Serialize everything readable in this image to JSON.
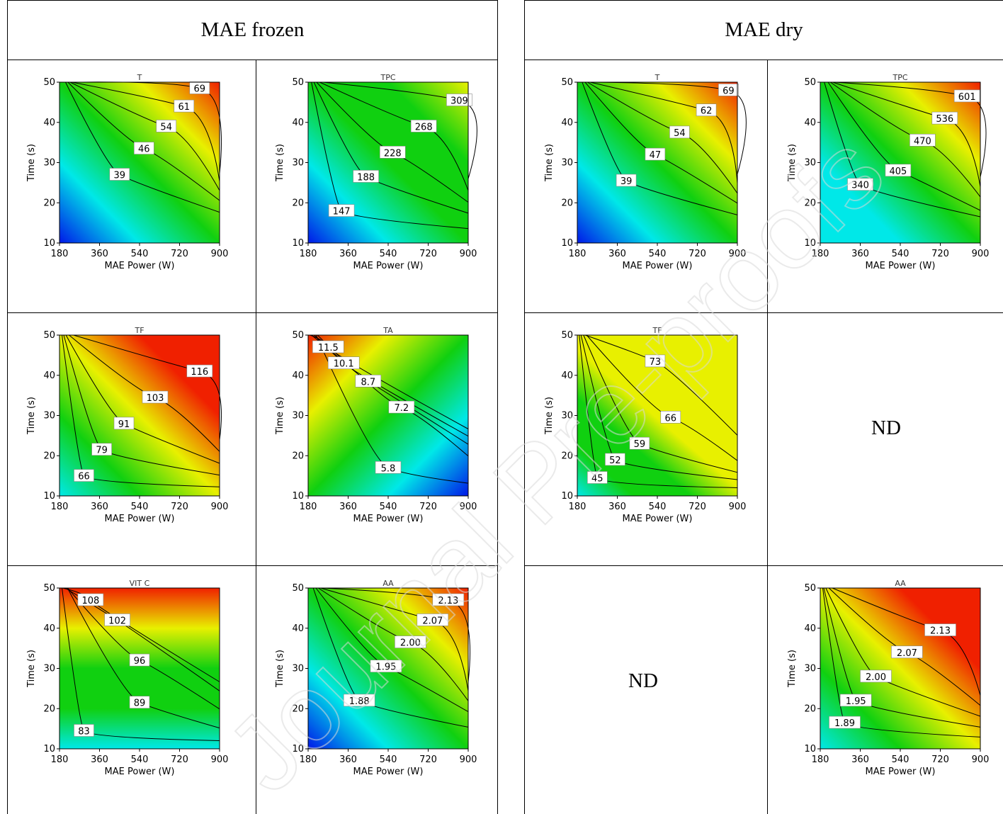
{
  "headers": {
    "left": "MAE frozen",
    "right": "MAE dry"
  },
  "not_determined": [
    "ND",
    "ND"
  ],
  "watermark": "Journal Pre-proofs",
  "colors": {
    "low": "#0018e8",
    "mid_low": "#00e8e8",
    "mid": "#10d010",
    "mid_high": "#e8f000",
    "high": "#f02000"
  },
  "chart_data": [
    {
      "type": "heatmap",
      "group": "MAE frozen",
      "title": "T",
      "xlabel": "MAE Power (W)",
      "ylabel": "Time (s)",
      "x_ticks": [
        "180",
        "360",
        "540",
        "720",
        "900"
      ],
      "y_ticks": [
        "10",
        "20",
        "30",
        "40",
        "50"
      ],
      "xlim": [
        180,
        900
      ],
      "ylim": [
        10,
        50
      ],
      "contours": [
        {
          "label": "39",
          "x": 450,
          "y": 27
        },
        {
          "label": "46",
          "x": 560,
          "y": 33.5
        },
        {
          "label": "54",
          "x": 660,
          "y": 39
        },
        {
          "label": "61",
          "x": 740,
          "y": 44
        },
        {
          "label": "69",
          "x": 810,
          "y": 48.5
        }
      ]
    },
    {
      "type": "heatmap",
      "group": "MAE frozen",
      "title": "TPC",
      "xlabel": "MAE Power (W)",
      "ylabel": "Time (s)",
      "x_ticks": [
        "180",
        "360",
        "540",
        "720",
        "900"
      ],
      "y_ticks": [
        "10",
        "20",
        "30",
        "40",
        "50"
      ],
      "xlim": [
        180,
        900
      ],
      "ylim": [
        10,
        50
      ],
      "contours": [
        {
          "label": "147",
          "x": 330,
          "y": 18
        },
        {
          "label": "188",
          "x": 440,
          "y": 26.5
        },
        {
          "label": "228",
          "x": 560,
          "y": 32.5
        },
        {
          "label": "268",
          "x": 700,
          "y": 39
        },
        {
          "label": "309",
          "x": 860,
          "y": 45.5
        }
      ]
    },
    {
      "type": "heatmap",
      "group": "MAE dry",
      "title": "T",
      "xlabel": "MAE Power (W)",
      "ylabel": "Time (s)",
      "x_ticks": [
        "180",
        "360",
        "540",
        "720",
        "900"
      ],
      "y_ticks": [
        "10",
        "20",
        "30",
        "40",
        "50"
      ],
      "xlim": [
        180,
        900
      ],
      "ylim": [
        10,
        50
      ],
      "contours": [
        {
          "label": "39",
          "x": 400,
          "y": 25.5
        },
        {
          "label": "47",
          "x": 530,
          "y": 32
        },
        {
          "label": "54",
          "x": 640,
          "y": 37.5
        },
        {
          "label": "62",
          "x": 760,
          "y": 43
        },
        {
          "label": "69",
          "x": 860,
          "y": 48
        }
      ]
    },
    {
      "type": "heatmap",
      "group": "MAE dry",
      "title": "TPC",
      "xlabel": "MAE Power (W)",
      "ylabel": "Time (s)",
      "x_ticks": [
        "180",
        "360",
        "540",
        "720",
        "900"
      ],
      "y_ticks": [
        "10",
        "20",
        "30",
        "40",
        "50"
      ],
      "xlim": [
        180,
        900
      ],
      "ylim": [
        10,
        50
      ],
      "contours": [
        {
          "label": "340",
          "x": 360,
          "y": 24.5
        },
        {
          "label": "405",
          "x": 530,
          "y": 28
        },
        {
          "label": "470",
          "x": 640,
          "y": 35.5
        },
        {
          "label": "536",
          "x": 740,
          "y": 41
        },
        {
          "label": "601",
          "x": 840,
          "y": 46.5
        }
      ]
    },
    {
      "type": "heatmap",
      "group": "MAE frozen",
      "title": "TF",
      "xlabel": "MAE Power (W)",
      "ylabel": "Time (s)",
      "x_ticks": [
        "180",
        "360",
        "540",
        "720",
        "900"
      ],
      "y_ticks": [
        "10",
        "20",
        "30",
        "40",
        "50"
      ],
      "xlim": [
        180,
        900
      ],
      "ylim": [
        10,
        50
      ],
      "contours": [
        {
          "label": "66",
          "x": 290,
          "y": 15
        },
        {
          "label": "79",
          "x": 370,
          "y": 21.5
        },
        {
          "label": "91",
          "x": 470,
          "y": 28
        },
        {
          "label": "103",
          "x": 610,
          "y": 34.5
        },
        {
          "label": "116",
          "x": 810,
          "y": 41
        }
      ]
    },
    {
      "type": "heatmap",
      "group": "MAE frozen",
      "title": "TA",
      "xlabel": "MAE Power (W)",
      "ylabel": "Time (s)",
      "x_ticks": [
        "180",
        "360",
        "540",
        "720",
        "900"
      ],
      "y_ticks": [
        "10",
        "20",
        "30",
        "40",
        "50"
      ],
      "xlim": [
        180,
        900
      ],
      "ylim": [
        10,
        50
      ],
      "contours": [
        {
          "label": "5.8",
          "x": 540,
          "y": 17
        },
        {
          "label": "7.2",
          "x": 600,
          "y": 32
        },
        {
          "label": "8.7",
          "x": 450,
          "y": 38.5
        },
        {
          "label": "10.1",
          "x": 340,
          "y": 43
        },
        {
          "label": "11.5",
          "x": 270,
          "y": 47
        }
      ]
    },
    {
      "type": "heatmap",
      "group": "MAE dry",
      "title": "TF",
      "xlabel": "MAE Power (W)",
      "ylabel": "Time (s)",
      "x_ticks": [
        "180",
        "360",
        "540",
        "720",
        "900"
      ],
      "y_ticks": [
        "10",
        "20",
        "30",
        "40",
        "50"
      ],
      "xlim": [
        180,
        900
      ],
      "ylim": [
        10,
        50
      ],
      "contours": [
        {
          "label": "45",
          "x": 270,
          "y": 14.5
        },
        {
          "label": "52",
          "x": 350,
          "y": 19
        },
        {
          "label": "59",
          "x": 460,
          "y": 23
        },
        {
          "label": "66",
          "x": 600,
          "y": 29.5
        },
        {
          "label": "73",
          "x": 530,
          "y": 43.5
        }
      ]
    },
    {
      "type": "heatmap",
      "group": "MAE frozen",
      "title": "VIT C",
      "xlabel": "MAE Power (W)",
      "ylabel": "Time (s)",
      "x_ticks": [
        "180",
        "360",
        "540",
        "720",
        "900"
      ],
      "y_ticks": [
        "10",
        "20",
        "30",
        "40",
        "50"
      ],
      "xlim": [
        180,
        900
      ],
      "ylim": [
        10,
        50
      ],
      "contours": [
        {
          "label": "83",
          "x": 290,
          "y": 14.5
        },
        {
          "label": "89",
          "x": 540,
          "y": 21.5
        },
        {
          "label": "96",
          "x": 540,
          "y": 32
        },
        {
          "label": "102",
          "x": 440,
          "y": 42
        },
        {
          "label": "108",
          "x": 320,
          "y": 47
        }
      ]
    },
    {
      "type": "heatmap",
      "group": "MAE frozen",
      "title": "AA",
      "xlabel": "MAE Power (W)",
      "ylabel": "Time (s)",
      "x_ticks": [
        "180",
        "360",
        "540",
        "720",
        "900"
      ],
      "y_ticks": [
        "10",
        "20",
        "30",
        "40",
        "50"
      ],
      "xlim": [
        180,
        900
      ],
      "ylim": [
        10,
        50
      ],
      "contours": [
        {
          "label": "1.88",
          "x": 410,
          "y": 22
        },
        {
          "label": "1.95",
          "x": 530,
          "y": 30.5
        },
        {
          "label": "2.00",
          "x": 640,
          "y": 36.5
        },
        {
          "label": "2.07",
          "x": 740,
          "y": 42
        },
        {
          "label": "2.13",
          "x": 810,
          "y": 47
        }
      ]
    },
    {
      "type": "heatmap",
      "group": "MAE dry",
      "title": "AA",
      "xlabel": "MAE Power (W)",
      "ylabel": "Time (s)",
      "x_ticks": [
        "180",
        "360",
        "540",
        "720",
        "900"
      ],
      "y_ticks": [
        "10",
        "20",
        "30",
        "40",
        "50"
      ],
      "xlim": [
        180,
        900
      ],
      "ylim": [
        10,
        50
      ],
      "contours": [
        {
          "label": "1.89",
          "x": 290,
          "y": 16.5
        },
        {
          "label": "1.95",
          "x": 340,
          "y": 22
        },
        {
          "label": "2.00",
          "x": 430,
          "y": 28
        },
        {
          "label": "2.07",
          "x": 570,
          "y": 34
        },
        {
          "label": "2.13",
          "x": 720,
          "y": 39.5
        }
      ]
    }
  ]
}
